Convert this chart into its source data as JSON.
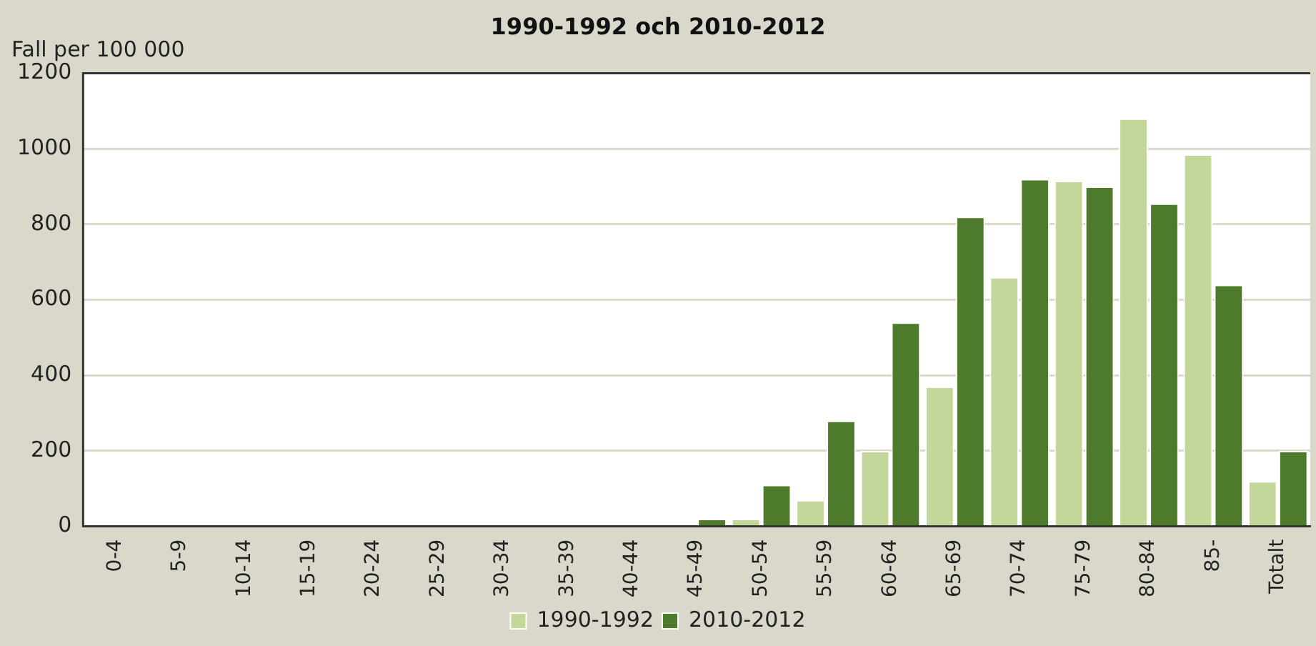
{
  "chart_data": {
    "type": "bar",
    "title": "1990-1992 och 2010-2012",
    "ylabel": "Fall per 100 000",
    "categories": [
      "0-4",
      "5-9",
      "10-14",
      "15-19",
      "20-24",
      "25-29",
      "30-34",
      "35-39",
      "40-44",
      "45-49",
      "50-54",
      "55-59",
      "60-64",
      "65-69",
      "70-74",
      "75-79",
      "80-84",
      "85-",
      "Totalt"
    ],
    "series": [
      {
        "name": "1990-1992",
        "color": "#c4d79b",
        "values": [
          0,
          0,
          0,
          0,
          0,
          0,
          0,
          0,
          0,
          0,
          20,
          70,
          200,
          370,
          660,
          915,
          1080,
          985,
          120
        ]
      },
      {
        "name": "2010-2012",
        "color": "#4e7a2b",
        "values": [
          0,
          0,
          0,
          0,
          0,
          0,
          0,
          0,
          0,
          20,
          110,
          280,
          540,
          820,
          920,
          900,
          855,
          640,
          200
        ]
      }
    ],
    "ylim": [
      0,
      1200
    ],
    "yticks": [
      0,
      200,
      400,
      600,
      800,
      1000,
      1200
    ],
    "grid": "y",
    "legend": "bottom"
  }
}
